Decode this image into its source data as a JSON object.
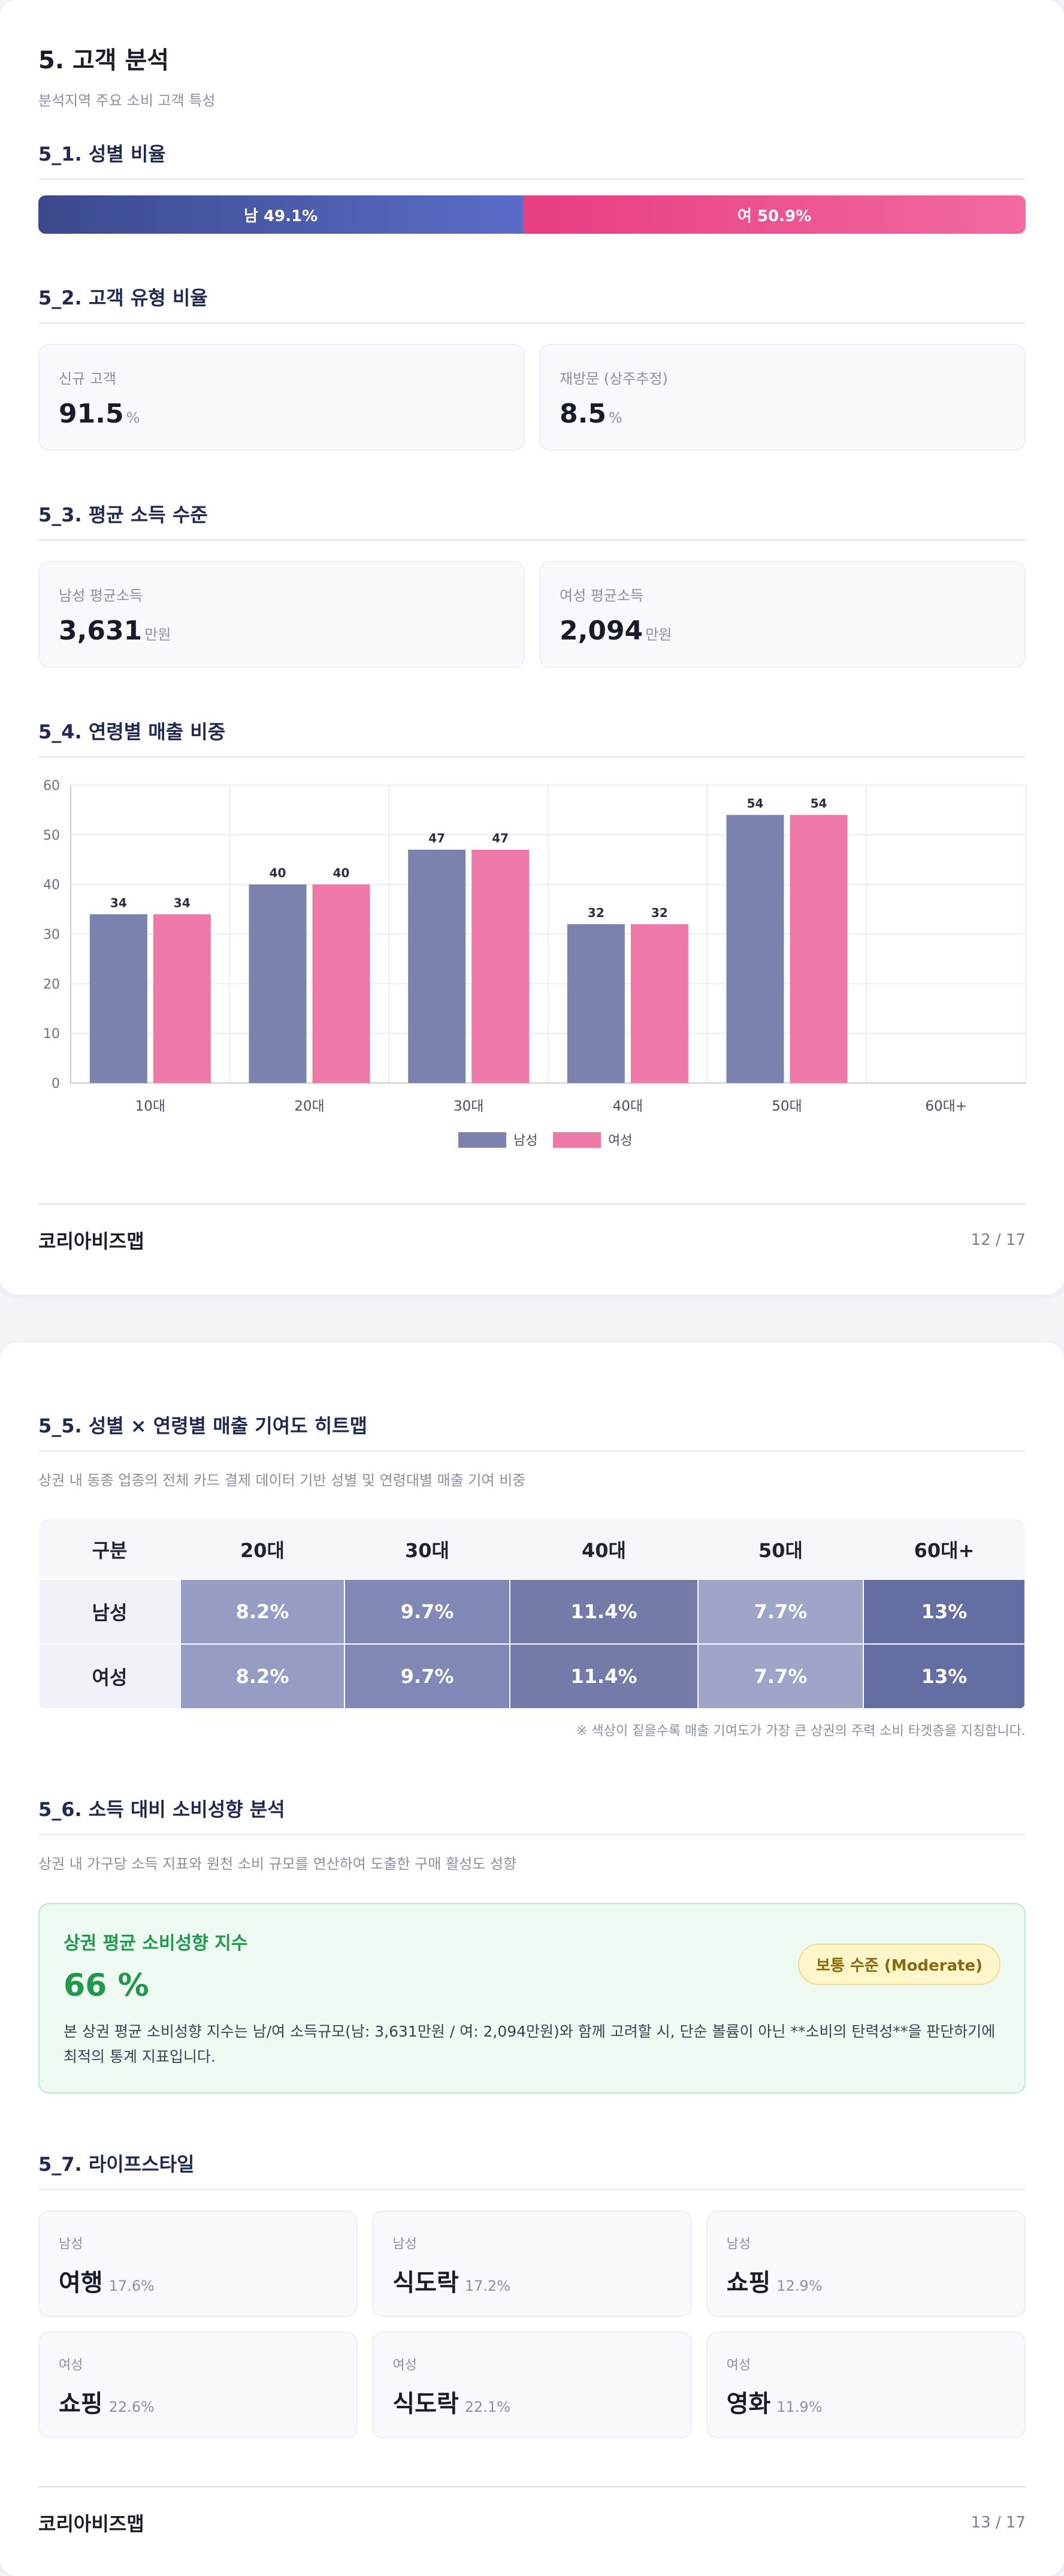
{
  "page1": {
    "section_title": "5. 고객 분석",
    "section_sub": "분석지역 주요 소비 고객 특성",
    "gender": {
      "title": "5_1. 성별 비율",
      "male_label": "남 49.1%",
      "female_label": "여 50.9%",
      "male_pct": 49.1,
      "female_pct": 50.9
    },
    "customer_type": {
      "title": "5_2. 고객 유형 비율",
      "cards": [
        {
          "label": "신규 고객",
          "value": "91.5",
          "unit": "%"
        },
        {
          "label": "재방문 (상주추정)",
          "value": "8.5",
          "unit": "%"
        }
      ]
    },
    "income": {
      "title": "5_3. 평균 소득 수준",
      "cards": [
        {
          "label": "남성 평균소득",
          "value": "3,631",
          "unit": "만원"
        },
        {
          "label": "여성 평균소득",
          "value": "2,094",
          "unit": "만원"
        }
      ]
    },
    "age_sales": {
      "title": "5_4. 연령별 매출 비중"
    },
    "footer": {
      "brand": "코리아비즈맵",
      "page": "12 / 17"
    }
  },
  "chart_data": {
    "type": "bar",
    "title": "",
    "categories": [
      "10대",
      "20대",
      "30대",
      "40대",
      "50대",
      "60대+"
    ],
    "series": [
      {
        "name": "남성",
        "values": [
          34,
          40,
          47,
          32,
          54,
          null
        ],
        "color": "#7b82ad"
      },
      {
        "name": "여성",
        "values": [
          34,
          40,
          47,
          32,
          54,
          null
        ],
        "color": "#ee78a8"
      }
    ],
    "ylim": [
      0,
      60
    ],
    "yticks": [
      0,
      10,
      20,
      30,
      40,
      50,
      60
    ],
    "grid": true,
    "legend": "bottom-center",
    "xlabel": "",
    "ylabel": ""
  },
  "page2": {
    "heatmap": {
      "title": "5_5. 성별 × 연령별 매출 기여도 히트맵",
      "sub": "상권 내 동종 업종의 전체 카드 결제 데이터 기반 성별 및 연령대별 매출 기여 비중",
      "corner": "구분",
      "columns": [
        "20대",
        "30대",
        "40대",
        "50대",
        "60대+"
      ],
      "rows": [
        {
          "label": "남성",
          "cells": [
            "8.2%",
            "9.7%",
            "11.4%",
            "7.7%",
            "13%"
          ]
        },
        {
          "label": "여성",
          "cells": [
            "8.2%",
            "9.7%",
            "11.4%",
            "7.7%",
            "13%"
          ]
        }
      ],
      "cell_colors": [
        "#979cc4",
        "#8188b6",
        "#747ba8",
        "#9fa4c8",
        "#656ea3"
      ],
      "note": "※ 색상이 짙을수록 매출 기여도가 가장 큰 상권의 주력 소비 타겟층을 지칭합니다."
    },
    "propensity": {
      "title": "5_6. 소득 대비 소비성향 분석",
      "sub": "상권 내 가구당 소득 지표와 원천 소비 규모를 연산하여 도출한 구매 활성도 성향",
      "box_title": "상권 평균 소비성향 지수",
      "box_value": "66 %",
      "badge": "보통 수준 (Moderate)",
      "desc": "본 상권 평균 소비성향 지수는 남/여 소득규모(남: 3,631만원 / 여: 2,094만원)와 함께 고려할 시, 단순 볼륨이 아닌 **소비의 탄력성**을 판단하기에 최적의 통계 지표입니다."
    },
    "lifestyle": {
      "title": "5_7. 라이프스타일",
      "cards": [
        {
          "gender": "남성",
          "category": "여행",
          "pct": "17.6%"
        },
        {
          "gender": "남성",
          "category": "식도락",
          "pct": "17.2%"
        },
        {
          "gender": "남성",
          "category": "쇼핑",
          "pct": "12.9%"
        },
        {
          "gender": "여성",
          "category": "쇼핑",
          "pct": "22.6%"
        },
        {
          "gender": "여성",
          "category": "식도락",
          "pct": "22.1%"
        },
        {
          "gender": "여성",
          "category": "영화",
          "pct": "11.9%"
        }
      ]
    },
    "footer": {
      "brand": "코리아비즈맵",
      "page": "13 / 17"
    }
  }
}
